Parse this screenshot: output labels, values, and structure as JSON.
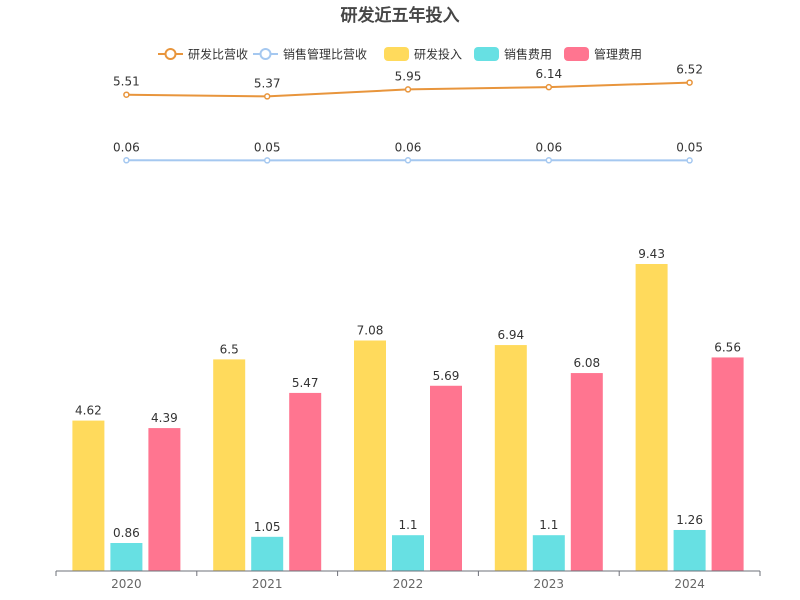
{
  "chart_data": {
    "type": "bar+line",
    "title": "研发近五年投入",
    "categories": [
      "2020",
      "2021",
      "2022",
      "2023",
      "2024"
    ],
    "line_series": [
      {
        "name": "研发比营收",
        "values": [
          5.51,
          5.37,
          5.95,
          6.14,
          6.52
        ],
        "color": "#e8953c"
      },
      {
        "name": "销售管理比营收",
        "values": [
          0.06,
          0.05,
          0.06,
          0.06,
          0.05
        ],
        "color": "#a5c8f0"
      }
    ],
    "bar_series": [
      {
        "name": "研发投入",
        "values": [
          4.62,
          6.5,
          7.08,
          6.94,
          9.43
        ],
        "color": "#ffda5c"
      },
      {
        "name": "销售费用",
        "values": [
          0.86,
          1.05,
          1.1,
          1.1,
          1.26
        ],
        "color": "#67e0e3"
      },
      {
        "name": "管理费用",
        "values": [
          4.39,
          5.47,
          5.69,
          6.08,
          6.56
        ],
        "color": "#ff7590"
      }
    ],
    "value_labels": {
      "研发比营收": [
        "5.51",
        "5.37",
        "5.95",
        "6.14",
        "6.52"
      ],
      "销售管理比营收": [
        "0.06",
        "0.05",
        "0.06",
        "0.06",
        "0.05"
      ],
      "研发投入": [
        "4.62",
        "6.5",
        "7.08",
        "6.94",
        "9.43"
      ],
      "销售费用": [
        "0.86",
        "1.05",
        "1.1",
        "1.1",
        "1.26"
      ],
      "管理费用": [
        "4.39",
        "5.47",
        "5.69",
        "6.08",
        "6.56"
      ]
    },
    "legend": [
      "研发比营收",
      "销售管理比营收",
      "研发投入",
      "销售费用",
      "管理费用"
    ],
    "legend_position": "top-center",
    "bar_ylim": [
      0,
      9.43
    ],
    "grid": false
  }
}
